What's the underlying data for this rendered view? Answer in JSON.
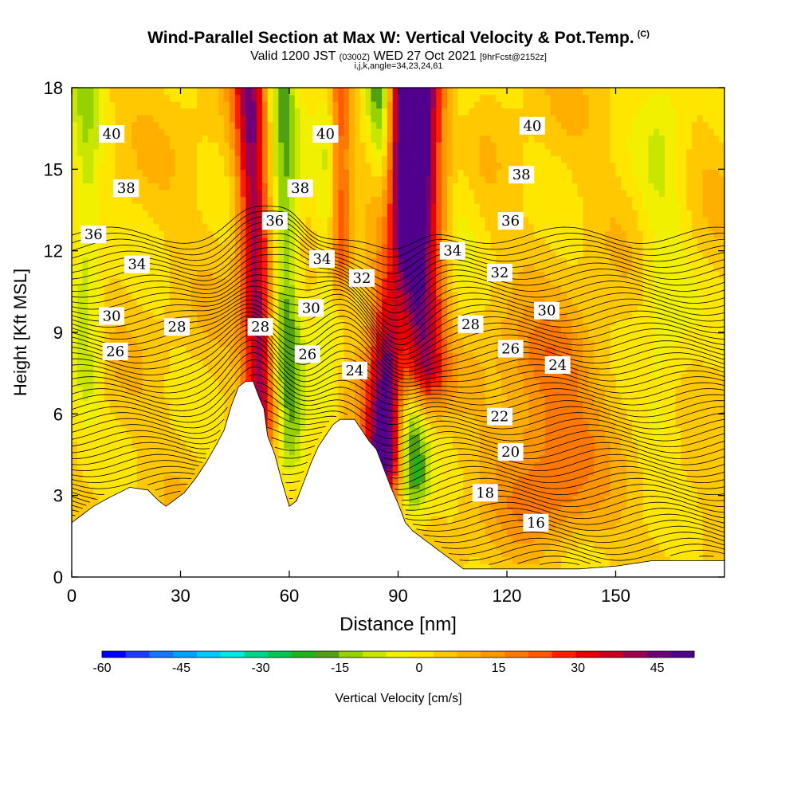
{
  "title": {
    "main": "Wind-Parallel Section at Max W: Vertical Velocity & Pot.Temp.",
    "main_mark": "(C)",
    "valid_prefix": "Valid 1200 JST",
    "valid_utc": "(0300Z)",
    "valid_date": "WED 27 Oct 2021",
    "fcst": "[9hrFcst@2152z]",
    "indices": "i,j,k,angle=34,23,24,61"
  },
  "chart_data": {
    "type": "heatmap",
    "xlabel": "Distance [nm]",
    "ylabel": "Height [Kft MSL]",
    "xlim": [
      0,
      180
    ],
    "ylim": [
      0,
      18
    ],
    "x_ticks": [
      0,
      30,
      60,
      90,
      120,
      150
    ],
    "y_ticks": [
      0,
      3,
      6,
      9,
      12,
      15,
      18
    ],
    "colorbar": {
      "label": "Vertical Velocity [cm/s]",
      "range": [
        -60,
        52
      ],
      "tick_values": [
        -60,
        -45,
        -30,
        -15,
        0,
        15,
        30,
        45
      ],
      "colors": [
        "#0000ff",
        "#1e3cff",
        "#1478ff",
        "#00a0ff",
        "#00c8ff",
        "#00e6e6",
        "#00d28c",
        "#00c850",
        "#1eb41e",
        "#50a014",
        "#96d200",
        "#c8e600",
        "#f0f000",
        "#ffe600",
        "#ffc800",
        "#ffaf00",
        "#ff9600",
        "#ff7800",
        "#ff5a00",
        "#ff1e00",
        "#e60000",
        "#c8001e",
        "#a00050",
        "#6e0078",
        "#50008c"
      ]
    },
    "terrain_profile": [
      [
        0,
        2
      ],
      [
        3,
        2.3
      ],
      [
        6,
        2.6
      ],
      [
        10,
        2.9
      ],
      [
        16,
        3.3
      ],
      [
        21,
        3.2
      ],
      [
        24,
        2.8
      ],
      [
        26,
        2.6
      ],
      [
        28,
        2.8
      ],
      [
        31,
        3.1
      ],
      [
        34,
        3.6
      ],
      [
        37,
        4.2
      ],
      [
        40,
        4.9
      ],
      [
        42,
        5.4
      ],
      [
        44,
        6.3
      ],
      [
        46,
        7.0
      ],
      [
        48,
        7.2
      ],
      [
        50,
        7.2
      ],
      [
        52,
        6.5
      ],
      [
        53,
        6.2
      ],
      [
        54,
        5.2
      ],
      [
        56,
        4.5
      ],
      [
        58,
        3.5
      ],
      [
        60,
        2.6
      ],
      [
        62,
        2.8
      ],
      [
        64,
        3.5
      ],
      [
        66,
        4.2
      ],
      [
        68,
        4.8
      ],
      [
        70,
        5.2
      ],
      [
        72,
        5.6
      ],
      [
        74,
        5.8
      ],
      [
        78,
        5.8
      ],
      [
        80,
        5.4
      ],
      [
        82,
        5.0
      ],
      [
        84,
        4.7
      ],
      [
        86,
        4.0
      ],
      [
        88,
        3.3
      ],
      [
        90,
        2.7
      ],
      [
        92,
        2.0
      ],
      [
        94,
        1.7
      ],
      [
        96,
        1.5
      ],
      [
        98,
        1.3
      ],
      [
        100,
        1.1
      ],
      [
        102,
        0.9
      ],
      [
        104,
        0.7
      ],
      [
        106,
        0.5
      ],
      [
        108,
        0.3
      ],
      [
        110,
        0.3
      ],
      [
        120,
        0.3
      ],
      [
        130,
        0.3
      ],
      [
        140,
        0.3
      ],
      [
        150,
        0.4
      ],
      [
        155,
        0.5
      ],
      [
        160,
        0.6
      ],
      [
        165,
        0.6
      ],
      [
        172,
        0.6
      ],
      [
        175,
        0.6
      ]
    ],
    "updraft_bands": [
      {
        "x": 52,
        "width": 3,
        "x_top": 49,
        "y_bottom": 6.5,
        "y_top": 18,
        "value": 38
      },
      {
        "x": 86,
        "width": 4,
        "x_top": 93,
        "y_bottom": 4.5,
        "y_top": 18,
        "value": 48
      },
      {
        "x": 97,
        "width": 5,
        "x_top": 96,
        "y_bottom": 8,
        "y_top": 18,
        "value": 38
      },
      {
        "x": 74,
        "width": 2,
        "x_top": 74,
        "y_bottom": 12,
        "y_top": 18,
        "value": 25
      },
      {
        "x": 132,
        "width": 10,
        "x_top": 132,
        "y_bottom": 3,
        "y_top": 8,
        "value": 15
      }
    ],
    "downdraft_bands": [
      {
        "x": 60,
        "width": 3,
        "x_top": 58,
        "y_bottom": 5,
        "y_top": 18,
        "value": -20
      },
      {
        "x": 94,
        "width": 3,
        "x_top": 85,
        "y_bottom": 4,
        "y_top": 18,
        "value": -28
      },
      {
        "x": 4,
        "width": 3,
        "x_top": 4,
        "y_bottom": 7.5,
        "y_top": 18,
        "value": -12
      },
      {
        "x": 70,
        "width": 3,
        "x_top": 72,
        "y_bottom": 7,
        "y_top": 18,
        "value": -10
      },
      {
        "x": 104,
        "width": 4,
        "x_top": 106,
        "y_bottom": 9,
        "y_top": 18,
        "value": -8
      },
      {
        "x": 163,
        "width": 5,
        "x_top": 163,
        "y_bottom": 6,
        "y_top": 18,
        "value": -8
      }
    ],
    "theta_levels": [
      16,
      18,
      20,
      22,
      24,
      26,
      28,
      30,
      32,
      34,
      36,
      38,
      40
    ],
    "theta_labels": [
      {
        "text": "40",
        "x": 11,
        "y": 16.3
      },
      {
        "text": "40",
        "x": 70,
        "y": 16.3
      },
      {
        "text": "40",
        "x": 127,
        "y": 16.6
      },
      {
        "text": "38",
        "x": 15,
        "y": 14.3
      },
      {
        "text": "38",
        "x": 63,
        "y": 14.3
      },
      {
        "text": "38",
        "x": 124,
        "y": 14.8
      },
      {
        "text": "36",
        "x": 6,
        "y": 12.6
      },
      {
        "text": "36",
        "x": 56,
        "y": 13.1
      },
      {
        "text": "36",
        "x": 121,
        "y": 13.1
      },
      {
        "text": "34",
        "x": 18,
        "y": 11.5
      },
      {
        "text": "34",
        "x": 69,
        "y": 11.7
      },
      {
        "text": "34",
        "x": 105,
        "y": 12.0
      },
      {
        "text": "32",
        "x": 80,
        "y": 11.0
      },
      {
        "text": "32",
        "x": 118,
        "y": 11.2
      },
      {
        "text": "30",
        "x": 11,
        "y": 9.6
      },
      {
        "text": "30",
        "x": 66,
        "y": 9.9
      },
      {
        "text": "30",
        "x": 131,
        "y": 9.8
      },
      {
        "text": "28",
        "x": 29,
        "y": 9.2
      },
      {
        "text": "28",
        "x": 52,
        "y": 9.2
      },
      {
        "text": "28",
        "x": 110,
        "y": 9.3
      },
      {
        "text": "26",
        "x": 12,
        "y": 8.3
      },
      {
        "text": "26",
        "x": 65,
        "y": 8.2
      },
      {
        "text": "26",
        "x": 121,
        "y": 8.4
      },
      {
        "text": "24",
        "x": 78,
        "y": 7.6
      },
      {
        "text": "24",
        "x": 134,
        "y": 7.8
      },
      {
        "text": "22",
        "x": 118,
        "y": 5.9
      },
      {
        "text": "20",
        "x": 121,
        "y": 4.6
      },
      {
        "text": "18",
        "x": 114,
        "y": 3.1
      },
      {
        "text": "16",
        "x": 128,
        "y": 2.0
      }
    ]
  }
}
